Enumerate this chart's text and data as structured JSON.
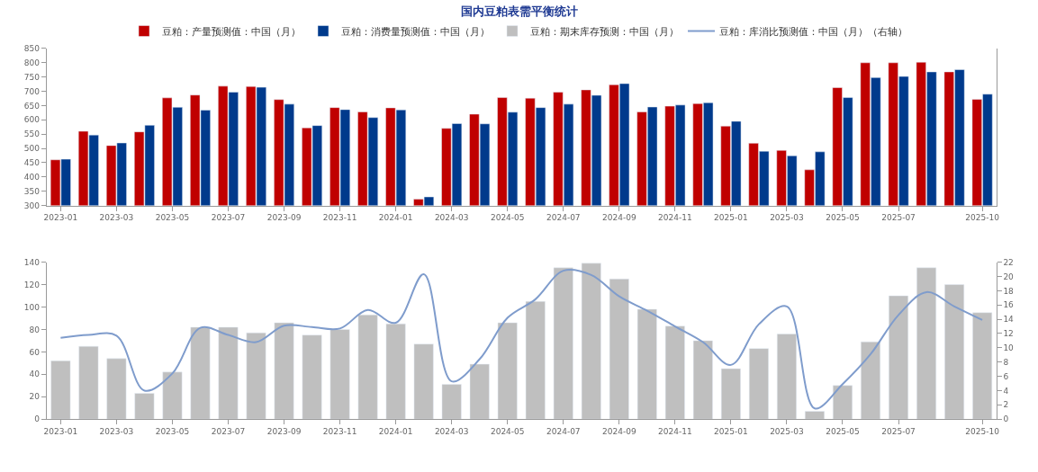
{
  "chart_data": [
    {
      "type": "bar",
      "title": "国内豆粕表需平衡统计",
      "legend": "top",
      "categories": [
        "2023-01",
        null,
        "2023-03",
        null,
        "2023-05",
        null,
        "2023-07",
        null,
        "2023-09",
        null,
        "2023-11",
        null,
        "2024-01",
        null,
        "2024-03",
        null,
        "2024-05",
        null,
        "2024-07",
        null,
        "2024-09",
        null,
        "2024-11",
        null,
        "2025-01",
        null,
        "2025-03",
        null,
        "2025-05",
        null,
        "2025-07",
        null,
        null,
        "2025-10"
      ],
      "series": [
        {
          "name": "豆粕：产量预测值：中国（月）",
          "color": "#c00000",
          "values": [
            460,
            560,
            510,
            558,
            677,
            687,
            718,
            717,
            671,
            572,
            643,
            628,
            642,
            322,
            570,
            620,
            678,
            676,
            697,
            705,
            723,
            628,
            648,
            657,
            578,
            518,
            493,
            425,
            713,
            800,
            800,
            802,
            768,
            672
          ]
        },
        {
          "name": "豆粕：消费量预测值：中国（月）",
          "color": "#003a8c",
          "values": [
            462,
            547,
            519,
            581,
            644,
            634,
            697,
            714,
            655,
            580,
            636,
            608,
            635,
            330,
            587,
            586,
            627,
            643,
            655,
            686,
            727,
            645,
            652,
            660,
            595,
            490,
            474,
            488,
            678,
            748,
            752,
            768,
            776,
            690
          ]
        }
      ],
      "ylim": [
        300,
        850
      ],
      "yticks": [
        300,
        350,
        400,
        450,
        500,
        550,
        600,
        650,
        700,
        750,
        800,
        850
      ]
    },
    {
      "type": "bar",
      "legend": "top",
      "categories": [
        "2023-01",
        null,
        "2023-03",
        null,
        "2023-05",
        null,
        "2023-07",
        null,
        "2023-09",
        null,
        "2023-11",
        null,
        "2024-01",
        null,
        "2024-03",
        null,
        "2024-05",
        null,
        "2024-07",
        null,
        "2024-09",
        null,
        "2024-11",
        null,
        "2025-01",
        null,
        "2025-03",
        null,
        "2025-05",
        null,
        "2025-07",
        null,
        null,
        "2025-10"
      ],
      "series": [
        {
          "name": "豆粕：期末库存预测：中国（月）",
          "color": "#bfbfbf",
          "values": [
            52,
            65,
            54,
            23,
            42,
            82,
            82,
            77,
            86,
            75,
            80,
            93,
            85,
            67,
            31,
            49,
            86,
            105,
            135,
            139,
            125,
            98,
            83,
            70,
            45,
            63,
            76,
            7,
            30,
            69,
            110,
            135,
            120,
            95
          ]
        },
        {
          "name": "豆粕：库消比预测值：中国（月）（右轴）",
          "color": "#7f9ccc",
          "type": "line",
          "axis": "y2",
          "values": [
            11.4,
            11.8,
            11.7,
            4.0,
            6.4,
            12.8,
            11.8,
            10.8,
            13.1,
            12.9,
            12.7,
            15.3,
            13.5,
            20.3,
            5.3,
            8.4,
            14.2,
            16.8,
            20.8,
            20.2,
            17.2,
            15.2,
            13.0,
            10.8,
            7.6,
            13.3,
            15.8,
            1.5,
            4.9,
            9.1,
            14.6,
            17.8,
            15.8,
            13.9
          ]
        }
      ],
      "ylim": [
        0,
        140
      ],
      "yticks": [
        0,
        20,
        40,
        60,
        80,
        100,
        120,
        140
      ],
      "y2lim": [
        0,
        22
      ],
      "y2ticks": [
        0,
        2,
        4,
        6,
        8,
        10,
        12,
        14,
        16,
        18,
        20,
        22
      ]
    }
  ]
}
